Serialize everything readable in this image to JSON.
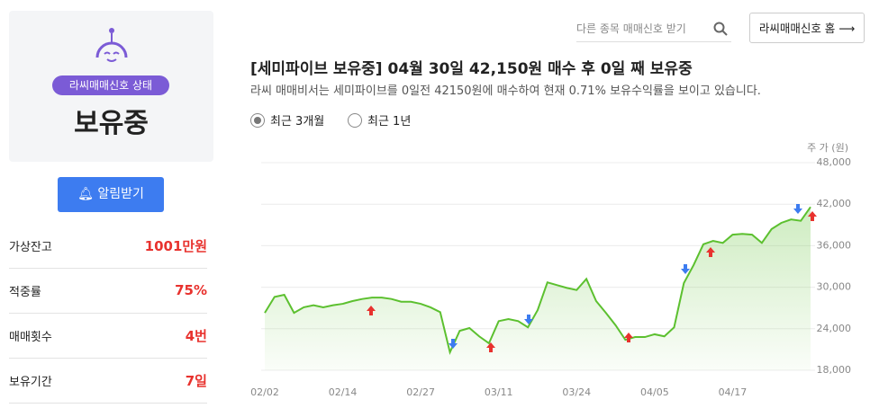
{
  "header": {
    "search_placeholder": "다른 종목 매매신호 받기",
    "home_button": "라씨매매신호 홈 ⟶"
  },
  "status_panel": {
    "badge": "라씨매매신호 상태",
    "status": "보유중",
    "alert_button": "알림받기",
    "stats": [
      {
        "label": "가상잔고",
        "value": "1001만원"
      },
      {
        "label": "적중률",
        "value": "75%"
      },
      {
        "label": "매매횟수",
        "value": "4번"
      },
      {
        "label": "보유기간",
        "value": "7일"
      }
    ]
  },
  "signal": {
    "title": "[세미파이브 보유중] 04월 30일 42,150원 매수 후 0일 째 보유중",
    "description": "라씨 매매비서는 세미파이브를 0일전 42150원에 매수하여 현재 0.71% 보유수익률을 보이고 있습니다.",
    "periods": [
      "최근 3개월",
      "최근 1년"
    ],
    "selected_period": 0
  },
  "chart_data": {
    "type": "area",
    "y_axis_label": "주 가 (원)",
    "categories": [
      "02/02",
      null,
      null,
      null,
      null,
      null,
      null,
      null,
      "02/14",
      null,
      null,
      null,
      null,
      null,
      null,
      null,
      "02/27",
      null,
      null,
      null,
      null,
      null,
      null,
      null,
      "03/11",
      null,
      null,
      null,
      null,
      null,
      null,
      null,
      "03/24",
      null,
      null,
      null,
      null,
      null,
      null,
      null,
      "04/05",
      null,
      null,
      null,
      null,
      null,
      null,
      null,
      "04/17",
      null,
      null,
      null,
      null,
      null,
      null,
      null,
      null
    ],
    "values": [
      26300,
      28600,
      28900,
      26300,
      27100,
      27400,
      27100,
      27400,
      27600,
      28000,
      28300,
      28500,
      28500,
      28300,
      27900,
      27900,
      27600,
      27100,
      26400,
      20600,
      23700,
      24100,
      22900,
      21900,
      25100,
      25400,
      25100,
      24200,
      26700,
      30700,
      30300,
      29900,
      29600,
      31200,
      28000,
      26300,
      24500,
      22400,
      22800,
      22800,
      23200,
      22900,
      24200,
      30600,
      33200,
      36200,
      36700,
      36400,
      37600,
      37700,
      37600,
      36400,
      38400,
      39300,
      39800,
      39600,
      41600
    ],
    "color": "#5cc02f",
    "ylim": [
      18000,
      48000
    ],
    "yticks": [
      {
        "value": 18000,
        "label": "18,000"
      },
      {
        "value": 24000,
        "label": "24,000"
      },
      {
        "value": 30000,
        "label": "30,000"
      },
      {
        "value": 36000,
        "label": "36,000"
      },
      {
        "value": 42000,
        "label": "42,000"
      },
      {
        "value": 48000,
        "label": "48,000"
      }
    ],
    "grid": true
  }
}
